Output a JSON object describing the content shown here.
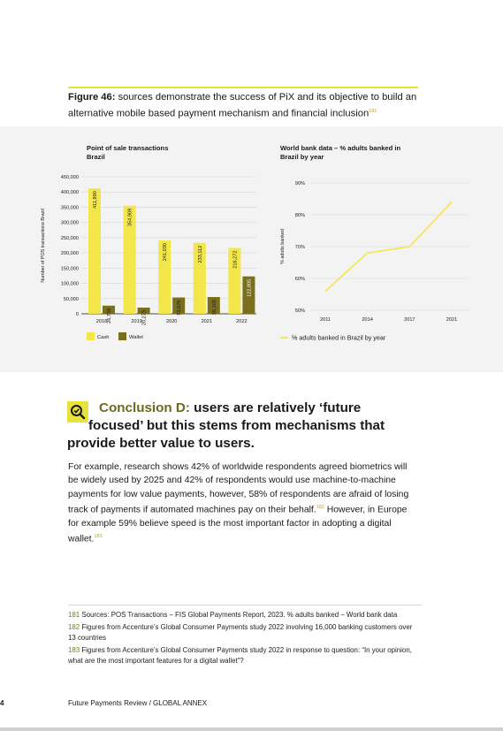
{
  "figure": {
    "label": "Figure 46:",
    "caption": "sources demonstrate the success of PiX and its objective to build an alternative mobile based payment mechanism and financial inclusion",
    "note_ref": "181"
  },
  "chart_data": [
    {
      "type": "bar",
      "title": "Point of sale transactions Brazil",
      "ylabel": "Number of POS transactions Brazil",
      "xlabel": "",
      "categories": [
        "2018",
        "2019",
        "2020",
        "2021",
        "2022"
      ],
      "series": [
        {
          "name": "Cash",
          "values": [
            411890,
            354909,
            241030,
            233112,
            216272
          ],
          "labels": [
            "411,890",
            "354,909",
            "241,030",
            "233,112",
            "216,272"
          ],
          "color": "#f2e64a"
        },
        {
          "name": "Wallet",
          "values": [
            26739,
            20273,
            53570,
            55105,
            122805
          ],
          "labels": [
            "26,739",
            "20,273",
            "53,570",
            "55,105",
            "122,805"
          ],
          "color": "#7a6f1c"
        }
      ],
      "ylim": [
        0,
        450000
      ],
      "yticks": [
        "0",
        "50,000",
        "100,000",
        "150,000",
        "200,000",
        "250,000",
        "300,000",
        "350,000",
        "400,000",
        "450,000"
      ],
      "grid": true,
      "legend": "bottom"
    },
    {
      "type": "line",
      "title": "World bank data – % adults banked in Brazil by year",
      "ylabel": "% adults banked",
      "xlabel": "",
      "x": [
        "2011",
        "2014",
        "2017",
        "2021"
      ],
      "series": [
        {
          "name": "% adults banked in Brazil by year",
          "values": [
            56,
            68,
            70,
            84
          ],
          "color": "#f2e64a"
        }
      ],
      "ylim": [
        50,
        90
      ],
      "yticks": [
        "50%",
        "60%",
        "70%",
        "80%",
        "90%"
      ],
      "grid": true,
      "legend": "bottom"
    }
  ],
  "conclusion": {
    "label": "Conclusion D:",
    "line1_rest": " users are relatively ‘future",
    "line2": "focused’ but this stems from mechanisms that",
    "line3": "provide better value to users.",
    "icon": "magnifier-check-icon"
  },
  "paragraph": {
    "text1": "For example, research shows 42% of worldwide respondents agreed biometrics will be widely used by 2025 and 42% of respondents would use machine-to-machine payments for low value payments, however, 58% of respondents are afraid of losing track of payments if automated machines pay on their behalf.",
    "ref1": "182",
    "text2": " However, in Europe for example 59% believe speed is the most important factor in adopting a digital wallet.",
    "ref2": "183"
  },
  "footnotes": [
    {
      "num": "181",
      "text": " Sources: POS Transactions – FIS Global Payments Report, 2023. % adults banked – World bank data"
    },
    {
      "num": "182",
      "text": " Figures from Accenture’s Global Consumer Payments study 2022 involving 16,000 banking customers over 13 countries"
    },
    {
      "num": "183",
      "text": " Figures from Accenture’s Global Consumer Payments study 2022 in response to question: “In your opinion, what are the most important features for a digital wallet”?"
    }
  ],
  "footer": {
    "page_number": "4",
    "running_head": "Future Payments Review / GLOBAL ANNEX"
  },
  "colors": {
    "accent_yellow": "#e8e23a",
    "cash_bar": "#f2e64a",
    "wallet_bar": "#7a6f1c",
    "olive_text": "#6b6a1f"
  }
}
